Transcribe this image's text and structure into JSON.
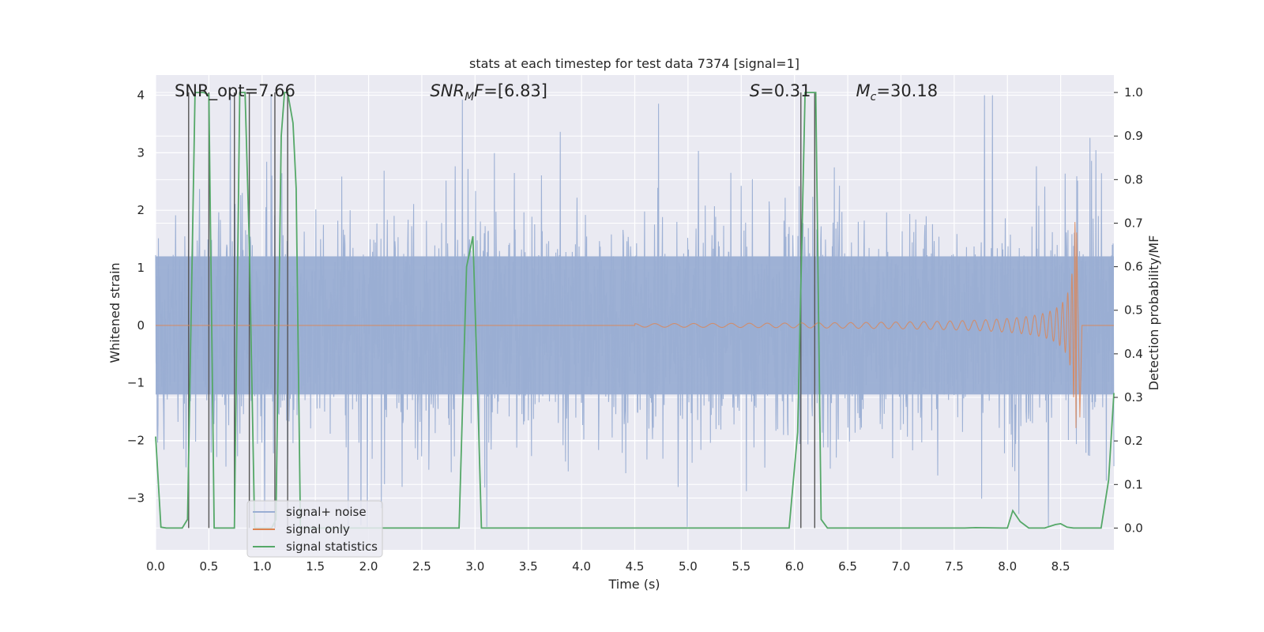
{
  "chart_data": {
    "type": "line",
    "title": "stats at each timestep for test data 7374 [signal=1]",
    "xlabel": "Time (s)",
    "ylabel_left": "Whitened strain",
    "ylabel_right": "Detection probability/MF",
    "xlim": [
      0.0,
      9.0
    ],
    "ylim_left": [
      -3.9,
      4.35
    ],
    "ylim_right": [
      -0.05,
      1.04
    ],
    "x_ticks": [
      "0.0",
      "0.5",
      "1.0",
      "1.5",
      "2.0",
      "2.5",
      "3.0",
      "3.5",
      "4.0",
      "4.5",
      "5.0",
      "5.5",
      "6.0",
      "6.5",
      "7.0",
      "7.5",
      "8.0",
      "8.5"
    ],
    "y_ticks_left": [
      "−3",
      "−2",
      "−1",
      "0",
      "1",
      "2",
      "3",
      "4"
    ],
    "y_ticks_right": [
      "0.0",
      "0.1",
      "0.2",
      "0.3",
      "0.4",
      "0.5",
      "0.6",
      "0.7",
      "0.8",
      "0.9",
      "1.0"
    ],
    "grid": true,
    "annotations": [
      {
        "name": "snr-opt",
        "text": "SNR_opt=7.66",
        "x": 0.2
      },
      {
        "name": "snr-mf",
        "text": "SNR_MF=[6.83]",
        "base": "SNR",
        "sub": "M",
        "tail": "F=[6.83]",
        "x": 2.6
      },
      {
        "name": "s-stat",
        "text": "S=0.31",
        "base": "S",
        "tail": "=0.31",
        "x": 5.6
      },
      {
        "name": "chirp-mass",
        "text": "Mc=30.18",
        "base": "M",
        "sub": "c",
        "tail": "=30.18",
        "x": 6.6
      }
    ],
    "legend": {
      "placement": "lower-left",
      "entries": [
        {
          "label": "signal+ noise",
          "color": "#9aaed3"
        },
        {
          "label": "signal only",
          "color": "#dd8452"
        },
        {
          "label": "signal statistics",
          "color": "#55a868"
        }
      ]
    },
    "series": [
      {
        "name": "signal+ noise",
        "axis": "left",
        "color": "#9aaed3",
        "description": "dense whitened strain noise trace sampled across 0-9 s, amplitude roughly -3.5 to 4"
      },
      {
        "name": "signal only",
        "axis": "left",
        "color": "#dd8452",
        "chirp": {
          "start": 4.5,
          "merger": 8.65,
          "end": 8.68,
          "peak_amplitude": 1.8,
          "early_amplitude": 0.03
        }
      },
      {
        "name": "signal statistics",
        "axis": "right",
        "color": "#55a868",
        "x": [
          0.0,
          0.05,
          0.1,
          0.25,
          0.3,
          0.37,
          0.4,
          0.45,
          0.5,
          0.55,
          0.74,
          0.79,
          0.84,
          0.88,
          0.93,
          1.09,
          1.13,
          1.18,
          1.21,
          1.24,
          1.29,
          1.32,
          1.36,
          1.41,
          2.85,
          2.92,
          2.98,
          3.02,
          3.06,
          5.95,
          6.03,
          6.1,
          6.15,
          6.2,
          6.25,
          6.31,
          7.6,
          7.7,
          7.95,
          8.0,
          8.05,
          8.12,
          8.2,
          8.35,
          8.45,
          8.5,
          8.56,
          8.62,
          8.88,
          8.95,
          9.0
        ],
        "y": [
          0.21,
          0.002,
          0.0,
          0.0,
          0.02,
          1.0,
          1.0,
          1.0,
          0.995,
          0.0,
          0.0,
          1.0,
          1.0,
          0.65,
          0.0,
          0.0,
          0.02,
          0.9,
          1.0,
          1.0,
          0.93,
          0.78,
          0.0,
          0.0,
          0.0,
          0.6,
          0.67,
          0.35,
          0.0,
          0.0,
          0.22,
          1.0,
          1.0,
          1.0,
          0.02,
          0.0,
          0.0,
          0.001,
          0.0,
          0.0,
          0.04,
          0.015,
          0.0,
          0.0,
          0.008,
          0.01,
          0.002,
          0.0,
          0.0,
          0.11,
          0.31
        ]
      },
      {
        "name": "marker lines",
        "axis": "right",
        "color": "#555555",
        "type": "vlines",
        "x": [
          0.31,
          0.5,
          0.74,
          0.88,
          1.12,
          1.24,
          6.06,
          6.19
        ]
      }
    ]
  }
}
